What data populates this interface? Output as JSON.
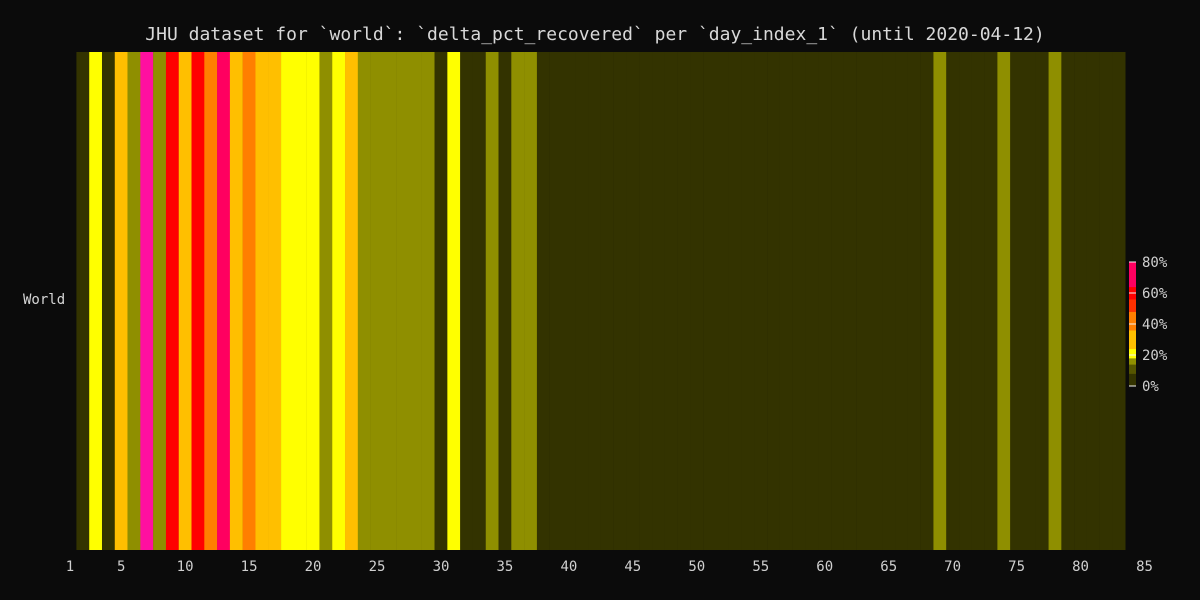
{
  "chart_data": {
    "type": "heatmap",
    "title": "JHU dataset for `world`: `delta_pct_recovered` per `day_index_1` (until 2020-04-12)",
    "row_label": "World",
    "x_range": [
      1,
      85
    ],
    "x_ticks": [
      1,
      5,
      10,
      15,
      20,
      25,
      30,
      35,
      40,
      45,
      50,
      55,
      60,
      65,
      70,
      75,
      80,
      85
    ],
    "colorbar": {
      "ticks": [
        "0%",
        "20%",
        "40%",
        "60%",
        "80%"
      ],
      "range": [
        0,
        80
      ]
    },
    "days": [
      1,
      2,
      3,
      4,
      5,
      6,
      7,
      8,
      9,
      10,
      11,
      12,
      13,
      14,
      15,
      16,
      17,
      18,
      19,
      20,
      21,
      22,
      23,
      24,
      25,
      26,
      27,
      28,
      29,
      30,
      31,
      32,
      33,
      34,
      35,
      36,
      37,
      38,
      39,
      40,
      41,
      42,
      43,
      44,
      45,
      46,
      47,
      48,
      49,
      50,
      51,
      52,
      53,
      54,
      55,
      56,
      57,
      58,
      59,
      60,
      61,
      62,
      63,
      64,
      65,
      66,
      67,
      68,
      69,
      70,
      71,
      72,
      73,
      74,
      75,
      76,
      77,
      78,
      79,
      80,
      81,
      82
    ],
    "values": [
      3,
      20,
      3,
      28,
      9,
      80,
      9,
      60,
      28,
      60,
      33,
      45,
      28,
      33,
      28,
      28,
      20,
      20,
      22,
      9,
      20,
      26,
      9,
      9,
      9,
      9,
      9,
      9,
      3,
      21,
      3,
      3,
      9,
      3,
      9,
      9,
      3,
      3,
      3,
      3,
      3,
      3,
      3,
      3,
      3,
      3,
      3,
      3,
      3,
      3,
      3,
      3,
      3,
      3,
      3,
      3,
      3,
      3,
      3,
      3,
      3,
      3,
      3,
      3,
      3,
      3,
      3,
      9,
      3,
      3,
      3,
      3,
      9,
      3,
      3,
      3,
      9,
      3,
      3,
      3,
      3,
      3
    ],
    "colors": {
      "background": "#0b0b0b",
      "low": "#333300",
      "olive": "#8f8f00",
      "yellow": "#ffff00",
      "amber": "#ffbf00",
      "orange": "#ff7f00",
      "red": "#ff0000",
      "crimson": "#ff0060",
      "magenta": "#ff10a0"
    }
  }
}
